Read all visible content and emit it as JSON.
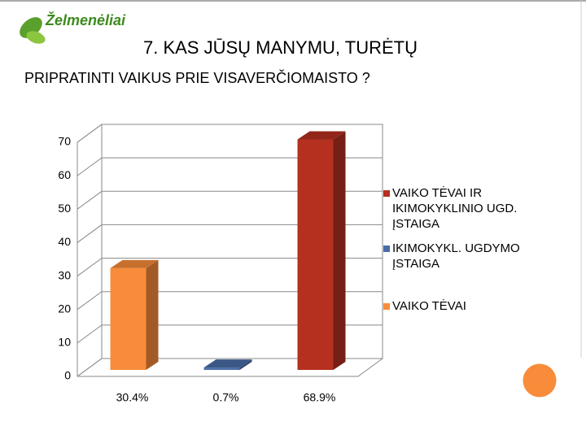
{
  "logo": "Želmenėliai",
  "chart_data": {
    "type": "bar3d",
    "title": [
      "7. KAS JŪSŲ MANYMU, TURĖTŲ",
      "PRIPRATINTI VAIKUS PRIE VISAVERČIOMAISTO ?"
    ],
    "categories": [
      "30.4%",
      "0.7%",
      "68.9%"
    ],
    "series": [
      {
        "name": "VAIKO TĖVAI IR IKIMOKYKLINIO UGD. ĮSTAIGA",
        "color": "#b5301f",
        "values": [
          null,
          null,
          68.9
        ]
      },
      {
        "name": "IKIMOKYKL. UGDYMO ĮSTAIGA",
        "color": "#4a6da8",
        "values": [
          null,
          0.7,
          null
        ]
      },
      {
        "name": "VAIKO TĖVAI",
        "color": "#f98c3a",
        "values": [
          30.4,
          null,
          null
        ]
      }
    ],
    "ylim": [
      0,
      70
    ],
    "yticks": [
      0,
      10,
      20,
      30,
      40,
      50,
      60,
      70
    ],
    "grid": true,
    "legend": "right"
  }
}
